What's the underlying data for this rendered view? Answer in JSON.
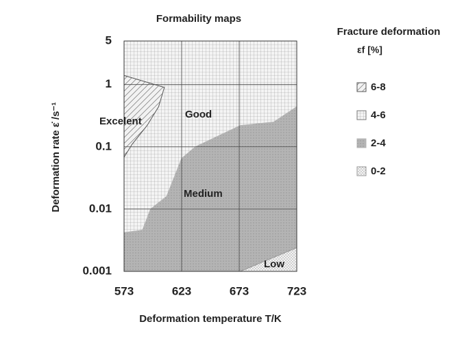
{
  "chart_data": {
    "type": "region-map",
    "title": "Formability maps",
    "x_label": "Deformation temperature T/K",
    "y_label": "Deformation rate ε̇ /s⁻¹",
    "legend_title": "Fracture deformation",
    "legend_subtitle": "εf [%]",
    "log_y": true,
    "grid": true,
    "xlim": [
      573,
      723
    ],
    "ylim": [
      0.001,
      5
    ],
    "xticks": [
      573,
      623,
      673,
      723
    ],
    "yticks": [
      0.001,
      0.01,
      0.1,
      1,
      5
    ],
    "annotations": [
      "Excelent",
      "Good",
      "Medium",
      "Low"
    ],
    "series": [
      {
        "name": "6-8",
        "pattern": "hatch",
        "color": "#555555",
        "x": [
          573,
          608,
          603,
          593,
          580,
          573
        ],
        "y": [
          1.4,
          0.9,
          0.44,
          0.22,
          0.11,
          0.068
        ]
      },
      {
        "name": "4-6",
        "pattern": "grid",
        "color": "#777777",
        "x": [
          573,
          723,
          723,
          573
        ],
        "y": [
          0.001,
          0.001,
          5,
          5
        ]
      },
      {
        "name": "2-4",
        "pattern": "gray",
        "color": "#b4b4b4",
        "x": [
          573,
          589,
          596,
          610,
          623,
          635,
          674,
          703,
          723,
          723,
          712,
          674,
          573
        ],
        "y": [
          0.0042,
          0.0046,
          0.01,
          0.016,
          0.065,
          0.1,
          0.22,
          0.25,
          0.44,
          0.0024,
          0.0018,
          0.001,
          0.001
        ]
      },
      {
        "name": "0-2",
        "pattern": "dots",
        "color": "#999999",
        "x": [
          674,
          723,
          723
        ],
        "y": [
          0.001,
          0.0024,
          0.001
        ]
      }
    ]
  }
}
